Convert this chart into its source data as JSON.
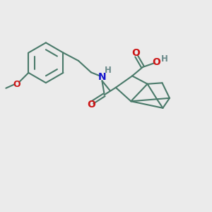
{
  "background_color": "#ebebeb",
  "bond_color": "#4a7a6a",
  "bond_width": 1.5,
  "N_color": "#1515cc",
  "O_color": "#cc1515",
  "H_color": "#6a8a8a",
  "fig_width": 3.0,
  "fig_height": 3.0,
  "dpi": 100,
  "xlim": [
    0,
    10
  ],
  "ylim": [
    0,
    10
  ]
}
